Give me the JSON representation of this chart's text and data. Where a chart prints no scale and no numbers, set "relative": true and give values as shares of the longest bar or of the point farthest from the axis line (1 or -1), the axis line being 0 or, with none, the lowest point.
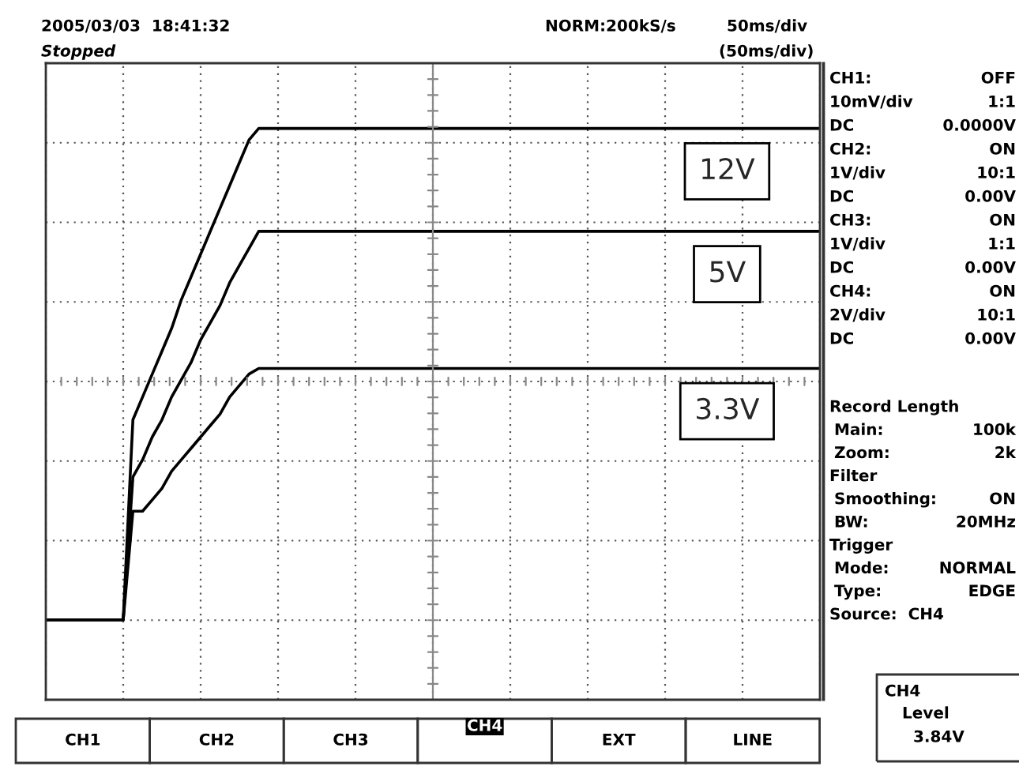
{
  "chart_data": {
    "type": "line",
    "relative": true,
    "grid": true,
    "legend": false,
    "marker": "none",
    "line_style": "solid",
    "categories": [
      null,
      null,
      null,
      null,
      null,
      null,
      null,
      null,
      null,
      null,
      null,
      null,
      null,
      null,
      null,
      null,
      null,
      null,
      null,
      null,
      null,
      null,
      null,
      null,
      null,
      null,
      null,
      null,
      null,
      null,
      null,
      null,
      null,
      null,
      null,
      null,
      null,
      null,
      null,
      null,
      null,
      null,
      null,
      null,
      null,
      null,
      null,
      null,
      null,
      null,
      null,
      null,
      null,
      null,
      null,
      null,
      null,
      null,
      null,
      null,
      null,
      null,
      null,
      null,
      null,
      null,
      null,
      null,
      null,
      null,
      null,
      null,
      null,
      null,
      null,
      null,
      null,
      null,
      null,
      null,
      null
    ],
    "series": [
      {
        "name": "12V",
        "color": "#000000",
        "values": [
          0.14,
          0.14,
          0.14,
          0.14,
          0.14,
          0.14,
          0.14,
          0.14,
          0.14,
          0.49,
          0.53,
          0.57,
          0.61,
          0.65,
          0.7,
          0.74,
          0.78,
          0.82,
          0.86,
          0.9,
          0.94,
          0.98,
          1.0,
          1.0,
          1.0,
          1.0,
          1.0,
          1.0,
          1.0,
          1.0,
          1.0,
          1.0,
          1.0,
          1.0,
          1.0,
          1.0,
          1.0,
          1.0,
          1.0,
          1.0,
          1.0,
          1.0,
          1.0,
          1.0,
          1.0,
          1.0,
          1.0,
          1.0,
          1.0,
          1.0,
          1.0,
          1.0,
          1.0,
          1.0,
          1.0,
          1.0,
          1.0,
          1.0,
          1.0,
          1.0,
          1.0,
          1.0,
          1.0,
          1.0,
          1.0,
          1.0,
          1.0,
          1.0,
          1.0,
          1.0,
          1.0,
          1.0,
          1.0,
          1.0,
          1.0,
          1.0,
          1.0,
          1.0,
          1.0,
          1.0,
          1.0
        ]
      },
      {
        "name": "5V",
        "color": "#000000",
        "values": [
          0.14,
          0.14,
          0.14,
          0.14,
          0.14,
          0.14,
          0.14,
          0.14,
          0.14,
          0.39,
          0.42,
          0.46,
          0.49,
          0.53,
          0.56,
          0.59,
          0.63,
          0.66,
          0.69,
          0.73,
          0.76,
          0.79,
          0.82,
          0.82,
          0.82,
          0.82,
          0.82,
          0.82,
          0.82,
          0.82,
          0.82,
          0.82,
          0.82,
          0.82,
          0.82,
          0.82,
          0.82,
          0.82,
          0.82,
          0.82,
          0.82,
          0.82,
          0.82,
          0.82,
          0.82,
          0.82,
          0.82,
          0.82,
          0.82,
          0.82,
          0.82,
          0.82,
          0.82,
          0.82,
          0.82,
          0.82,
          0.82,
          0.82,
          0.82,
          0.82,
          0.82,
          0.82,
          0.82,
          0.82,
          0.82,
          0.82,
          0.82,
          0.82,
          0.82,
          0.82,
          0.82,
          0.82,
          0.82,
          0.82,
          0.82,
          0.82,
          0.82,
          0.82,
          0.82,
          0.82,
          0.82
        ]
      },
      {
        "name": "3.3V",
        "color": "#000000",
        "values": [
          0.14,
          0.14,
          0.14,
          0.14,
          0.14,
          0.14,
          0.14,
          0.14,
          0.14,
          0.33,
          0.33,
          0.35,
          0.37,
          0.4,
          0.42,
          0.44,
          0.46,
          0.48,
          0.5,
          0.53,
          0.55,
          0.57,
          0.58,
          0.58,
          0.58,
          0.58,
          0.58,
          0.58,
          0.58,
          0.58,
          0.58,
          0.58,
          0.58,
          0.58,
          0.58,
          0.58,
          0.58,
          0.58,
          0.58,
          0.58,
          0.58,
          0.58,
          0.58,
          0.58,
          0.58,
          0.58,
          0.58,
          0.58,
          0.58,
          0.58,
          0.58,
          0.58,
          0.58,
          0.58,
          0.58,
          0.58,
          0.58,
          0.58,
          0.58,
          0.58,
          0.58,
          0.58,
          0.58,
          0.58,
          0.58,
          0.58,
          0.58,
          0.58,
          0.58,
          0.58,
          0.58,
          0.58,
          0.58,
          0.58,
          0.58,
          0.58,
          0.58,
          0.58,
          0.58,
          0.58,
          0.58
        ]
      }
    ],
    "annotations": [
      "2005/03/03  18:41:32",
      "Stopped",
      "NORM:200kS/s",
      "50ms/div",
      "(50ms/div)",
      "CH1:",
      "OFF",
      "10mV/div",
      "1:1",
      "DC",
      "0.0000V",
      "CH2:",
      "ON",
      "1V/div",
      "10:1",
      "DC",
      "0.00V",
      "CH3:",
      "ON",
      "1V/div",
      "1:1",
      "DC",
      "0.00V",
      "CH4:",
      "ON",
      "2V/div",
      "10:1",
      "DC",
      "0.00V",
      "Record Length",
      "Main:",
      "100k",
      "Zoom:",
      "2k",
      "Filter",
      "Smoothing:",
      "ON",
      "BW:",
      "20MHz",
      "Trigger",
      "Mode:",
      "NORMAL",
      "Type:",
      "EDGE",
      "Source:  CH4",
      "CH4",
      "Level",
      "3.84V",
      "CH1",
      "CH2",
      "CH3",
      "CH4",
      "EXT",
      "LINE"
    ]
  }
}
